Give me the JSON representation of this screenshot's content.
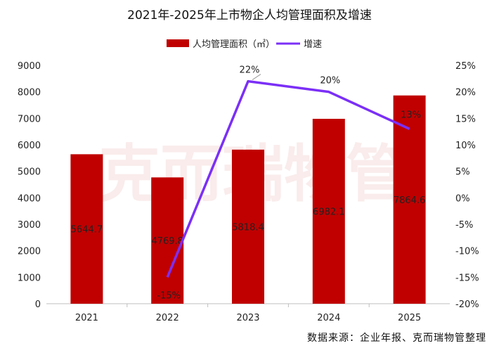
{
  "chart_data": {
    "type": "bar",
    "title": "2021年-2025年上市物企人均管理面积及增速",
    "categories": [
      "2021",
      "2022",
      "2023",
      "2024",
      "2025"
    ],
    "series": [
      {
        "name": "人均管理面积（㎡）",
        "type": "bar",
        "axis": "left",
        "color": "#c00000",
        "values": [
          5644.7,
          4769.8,
          5818.4,
          6982.1,
          7864.6
        ],
        "labels": [
          "5644.7",
          "4769.8",
          "5818.4",
          "6982.1",
          "7864.6"
        ]
      },
      {
        "name": "增速",
        "type": "line",
        "axis": "right",
        "color": "#7b2ff7",
        "values": [
          null,
          -15,
          22,
          20,
          13
        ],
        "labels": [
          "",
          "-15%",
          "22%",
          "20%",
          "13%"
        ]
      }
    ],
    "y_left": {
      "min": 0,
      "max": 9000,
      "ticks": [
        "0",
        "1000",
        "2000",
        "3000",
        "4000",
        "5000",
        "6000",
        "7000",
        "8000",
        "9000"
      ]
    },
    "y_right": {
      "min": -20,
      "max": 25,
      "ticks": [
        "-20%",
        "-15%",
        "-10%",
        "-5%",
        "0%",
        "5%",
        "10%",
        "15%",
        "20%",
        "25%"
      ]
    },
    "legend_position": "top-center",
    "grid": false
  },
  "watermark": "克而瑞物管",
  "source": "数据来源：企业年报、克而瑞物管整理"
}
